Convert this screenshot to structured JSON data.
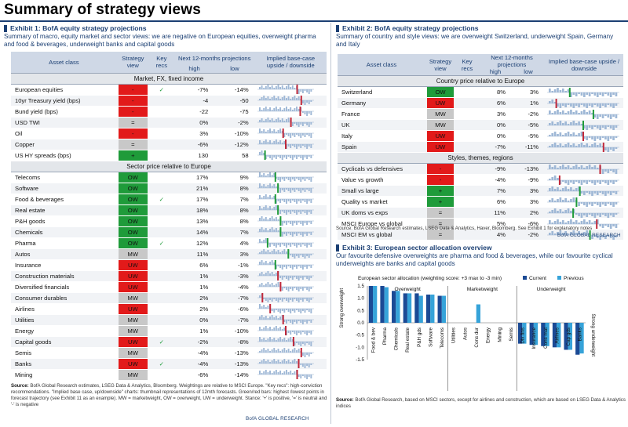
{
  "page": {
    "title": "Summary of strategy views",
    "brand": "BofA GLOBAL RESEARCH"
  },
  "colors": {
    "navy": "#1b3f73",
    "red": "#e21a1a",
    "green": "#1f9b3a",
    "grey": "#c8c8c8",
    "bar_current": "#1b4a95",
    "bar_previous": "#36a3d9"
  },
  "ex1": {
    "heading": "Exhibit 1: BofA equity strategy projections",
    "subtitle": "Summary of macro, equity market and sector views: we are negative on European equities, overweight pharma and food & beverages, underweight banks and capital goods",
    "headers": {
      "asset": "Asset class",
      "view": "Strategy view",
      "key": "Key recs",
      "proj": "Next 12-months projections",
      "high": "high",
      "low": "low",
      "upside": "Implied base-case upside / downside"
    },
    "sections": [
      {
        "title": "Market, FX, fixed income",
        "rows": [
          {
            "label": "European equities",
            "view": "-",
            "color": "red",
            "key": "✓",
            "high": "-7%",
            "low": "-14%",
            "marker": 0.72,
            "mcolor": "red"
          },
          {
            "label": "10yr Treasury yield (bps)",
            "view": "-",
            "color": "red",
            "key": "",
            "high": "-4",
            "low": "-50",
            "marker": 0.8,
            "mcolor": "red"
          },
          {
            "label": "Bund yield (bps)",
            "view": "-",
            "color": "red",
            "key": "",
            "high": "-22",
            "low": "-75",
            "marker": 0.78,
            "mcolor": "red"
          },
          {
            "label": "USD TWI",
            "view": "=",
            "color": "grey",
            "key": "",
            "high": "0%",
            "low": "-2%",
            "marker": 0.6,
            "mcolor": "red"
          },
          {
            "label": "Oil",
            "view": "-",
            "color": "red",
            "key": "",
            "high": "3%",
            "low": "-10%",
            "marker": 0.45,
            "mcolor": "red"
          },
          {
            "label": "Copper",
            "view": "=",
            "color": "grey",
            "key": "",
            "high": "-6%",
            "low": "-12%",
            "marker": 0.5,
            "mcolor": "red"
          },
          {
            "label": "US HY spreads (bps)",
            "view": "+",
            "color": "green",
            "key": "",
            "high": "130",
            "low": "58",
            "marker": 0.1,
            "mcolor": "green"
          }
        ]
      },
      {
        "title": "Sector price relative to Europe",
        "rows": [
          {
            "label": "Telecoms",
            "view": "OW",
            "color": "green",
            "key": "",
            "high": "17%",
            "low": "9%",
            "marker": 0.3,
            "mcolor": "green"
          },
          {
            "label": "Software",
            "view": "OW",
            "color": "green",
            "key": "",
            "high": "21%",
            "low": "8%",
            "marker": 0.35,
            "mcolor": "green"
          },
          {
            "label": "Food & beverages",
            "view": "OW",
            "color": "green",
            "key": "✓",
            "high": "17%",
            "low": "7%",
            "marker": 0.3,
            "mcolor": "green"
          },
          {
            "label": "Real estate",
            "view": "OW",
            "color": "green",
            "key": "",
            "high": "18%",
            "low": "8%",
            "marker": 0.35,
            "mcolor": "green"
          },
          {
            "label": "P&H goods",
            "view": "OW",
            "color": "green",
            "key": "",
            "high": "13%",
            "low": "8%",
            "marker": 0.4,
            "mcolor": "green"
          },
          {
            "label": "Chemicals",
            "view": "OW",
            "color": "green",
            "key": "",
            "high": "14%",
            "low": "7%",
            "marker": 0.4,
            "mcolor": "green"
          },
          {
            "label": "Pharma",
            "view": "OW",
            "color": "green",
            "key": "✓",
            "high": "12%",
            "low": "4%",
            "marker": 0.15,
            "mcolor": "green"
          },
          {
            "label": "Autos",
            "view": "MW",
            "color": "grey",
            "key": "",
            "high": "11%",
            "low": "3%",
            "marker": 0.55,
            "mcolor": "green"
          },
          {
            "label": "Insurance",
            "view": "UW",
            "color": "red",
            "key": "",
            "high": "6%",
            "low": "-1%",
            "marker": 0.3,
            "mcolor": "green"
          },
          {
            "label": "Construction materials",
            "view": "UW",
            "color": "red",
            "key": "",
            "high": "1%",
            "low": "-3%",
            "marker": 0.35,
            "mcolor": "red"
          },
          {
            "label": "Diversified financials",
            "view": "UW",
            "color": "red",
            "key": "",
            "high": "1%",
            "low": "-4%",
            "marker": 0.4,
            "mcolor": "red"
          },
          {
            "label": "Consumer durables",
            "view": "MW",
            "color": "grey",
            "key": "",
            "high": "2%",
            "low": "-7%",
            "marker": 0.05,
            "mcolor": "red"
          },
          {
            "label": "Airlines",
            "view": "UW",
            "color": "red",
            "key": "",
            "high": "2%",
            "low": "-6%",
            "marker": 0.2,
            "mcolor": "red"
          },
          {
            "label": "Utilities",
            "view": "MW",
            "color": "grey",
            "key": "",
            "high": "0%",
            "low": "-7%",
            "marker": 0.45,
            "mcolor": "red"
          },
          {
            "label": "Energy",
            "view": "MW",
            "color": "grey",
            "key": "",
            "high": "1%",
            "low": "-10%",
            "marker": 0.5,
            "mcolor": "red"
          },
          {
            "label": "Capital goods",
            "view": "UW",
            "color": "red",
            "key": "✓",
            "high": "-2%",
            "low": "-8%",
            "marker": 0.65,
            "mcolor": "red"
          },
          {
            "label": "Semis",
            "view": "MW",
            "color": "grey",
            "key": "",
            "high": "-4%",
            "low": "-13%",
            "marker": 0.8,
            "mcolor": "red"
          },
          {
            "label": "Banks",
            "view": "UW",
            "color": "red",
            "key": "✓",
            "high": "-4%",
            "low": "-13%",
            "marker": 0.75,
            "mcolor": "red"
          },
          {
            "label": "Mining",
            "view": "MW",
            "color": "grey",
            "key": "",
            "high": "-6%",
            "low": "-14%",
            "marker": 0.72,
            "mcolor": "red"
          }
        ]
      }
    ],
    "source_label": "Source:",
    "source": "BofA Global Research estimates, LSEG Data & Analytics, Bloomberg. Weightings are relative to MSCI Europe. \"Key recs\": high-conviction recommendations. \"Implied base case, up/downside\" charts: thumbnail representations of 12mth forecasts. Green/red bars: highest /lowest points in forecast trajectory (see Exhibit 11 as an example). MW = marketweight, OW = overweight, UW = underweight. Stance: '+' is positive, '=' is neutral and '-' is negative"
  },
  "ex2": {
    "heading": "Exhibit 2: BofA equity strategy projections",
    "subtitle": "Summary of country and style views: we are overweight Switzerland, underweight Spain, Germany and Italy",
    "headers": {
      "asset": "Asset class",
      "view": "Strategy view",
      "key": "Key recs",
      "proj": "Next 12-months projections",
      "high": "high",
      "low": "low",
      "upside": "Implied base-case upside / downside"
    },
    "sections": [
      {
        "title": "Country price relative to Europe",
        "rows": [
          {
            "label": "Switzerland",
            "view": "OW",
            "color": "green",
            "key": "",
            "high": "8%",
            "low": "3%",
            "marker": 0.3,
            "mcolor": "green"
          },
          {
            "label": "Germany",
            "view": "UW",
            "color": "red",
            "key": "",
            "high": "6%",
            "low": "1%",
            "marker": 0.1,
            "mcolor": "red"
          },
          {
            "label": "France",
            "view": "MW",
            "color": "grey",
            "key": "",
            "high": "3%",
            "low": "-2%",
            "marker": 0.65,
            "mcolor": "green"
          },
          {
            "label": "UK",
            "view": "MW",
            "color": "grey",
            "key": "",
            "high": "0%",
            "low": "-5%",
            "marker": 0.5,
            "mcolor": "green"
          },
          {
            "label": "Italy",
            "view": "UW",
            "color": "red",
            "key": "",
            "high": "0%",
            "low": "-5%",
            "marker": 0.5,
            "mcolor": "red"
          },
          {
            "label": "Spain",
            "view": "UW",
            "color": "red",
            "key": "",
            "high": "-7%",
            "low": "-11%",
            "marker": 0.8,
            "mcolor": "red"
          }
        ]
      },
      {
        "title": "Styles, themes, regions",
        "rows": [
          {
            "label": "Cyclicals vs defensives",
            "view": "-",
            "color": "red",
            "key": "",
            "high": "-9%",
            "low": "-13%",
            "marker": 0.75,
            "mcolor": "red"
          },
          {
            "label": "Value vs growth",
            "view": "-",
            "color": "red",
            "key": "",
            "high": "-4%",
            "low": "-9%",
            "marker": 0.15,
            "mcolor": "red"
          },
          {
            "label": "Small vs large",
            "view": "+",
            "color": "green",
            "key": "",
            "high": "7%",
            "low": "3%",
            "marker": 0.45,
            "mcolor": "green"
          },
          {
            "label": "Quality vs market",
            "view": "+",
            "color": "green",
            "key": "",
            "high": "6%",
            "low": "3%",
            "marker": 0.4,
            "mcolor": "green"
          },
          {
            "label": "UK doms vs exps",
            "view": "=",
            "color": "grey",
            "key": "",
            "high": "11%",
            "low": "2%",
            "marker": 0.35,
            "mcolor": "green"
          },
          {
            "label": "MSCI Europe vs global",
            "view": "=",
            "color": "grey",
            "key": "",
            "high": "5%",
            "low": "-6%",
            "marker": 0.7,
            "mcolor": "red"
          },
          {
            "label": "MSCI EM vs global",
            "view": "=",
            "color": "grey",
            "key": "",
            "high": "4%",
            "low": "-2%",
            "marker": 0.6,
            "mcolor": "green"
          }
        ]
      }
    ],
    "source": "Source: BofA Global Research estimates, LSEG Data & Analytics, Haver, Bloomberg. See Exhibit 1 for explanatory notes"
  },
  "ex3": {
    "heading": "Exhibit 3: European sector allocation overview",
    "subtitle": "Our favourite defensive overweights are pharma and food & beverages, while our favourite cyclical underweights are banks and capital goods",
    "source_label": "Source:",
    "source": "BofA Global Research, based on MSCI sectors, except for airlines and construction, which are based on LSEG Data & Analytics indices"
  },
  "chart_data": {
    "type": "bar",
    "title": "European sector allocation (weighting score: +3 max to -3 min)",
    "ylim": [
      -1.5,
      1.5
    ],
    "yticks": [
      "1.5",
      "1.0",
      "0.5",
      "0.0",
      "-0.5",
      "-1.0",
      "-1.5"
    ],
    "y_annotation_top": "Strong overweight",
    "y_annotation_bottom": "Strong underweight",
    "group_labels": [
      "Overweight",
      "Marketweight",
      "Underweight"
    ],
    "categories": [
      "Food & bev",
      "Pharma",
      "Chemicals",
      "Real estate",
      "P&H gds",
      "Software",
      "Telecoms",
      "Utilities",
      "Autos",
      "Cons dur",
      "Energy",
      "Mining",
      "Semis",
      "Div fins",
      "Insurance",
      "Cons mat",
      "Airlines",
      "Cap gds",
      "Banks"
    ],
    "series": [
      {
        "name": "Current",
        "values": [
          1.5,
          1.5,
          1.3,
          1.2,
          1.2,
          1.15,
          1.1,
          0,
          0,
          0,
          0,
          0,
          0,
          -0.85,
          -0.9,
          -0.95,
          -1.0,
          -1.1,
          -1.3
        ]
      },
      {
        "name": "Previous",
        "values": [
          1.5,
          1.45,
          1.3,
          1.2,
          1.1,
          1.15,
          1.1,
          0,
          0,
          0.75,
          0,
          0,
          0,
          -0.85,
          -0.9,
          -0.95,
          -1.0,
          -1.1,
          -1.25
        ]
      }
    ]
  }
}
